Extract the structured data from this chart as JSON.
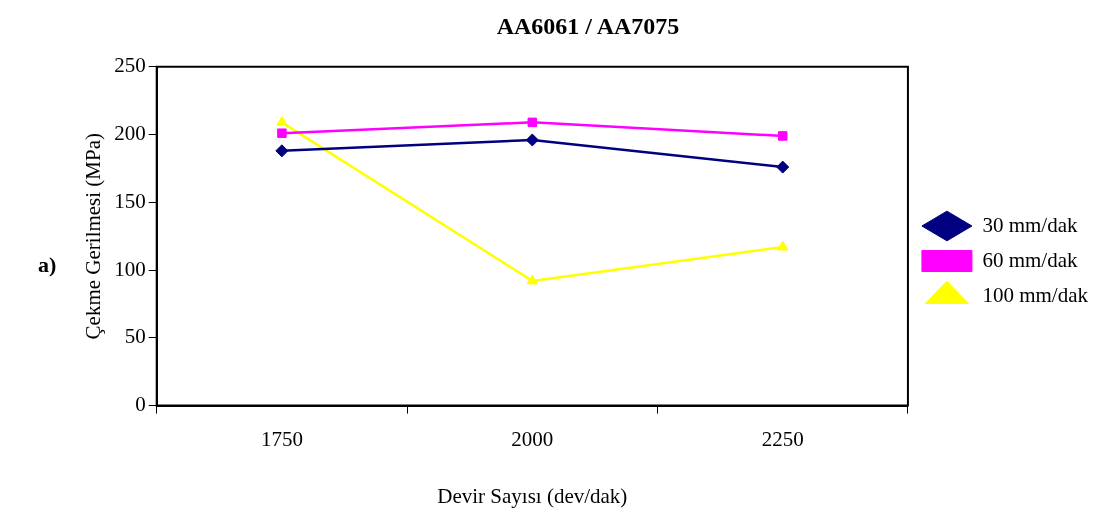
{
  "chart_data": {
    "type": "line",
    "title": "AA6061 / AA7075",
    "xlabel": "Devir Sayısı (dev/dak)",
    "ylabel": "Çekme Gerilmesi (MPa)",
    "annotations": [
      "a)"
    ],
    "categories": [
      "1750",
      "2000",
      "2250"
    ],
    "series": [
      {
        "name": "30 mm/dak",
        "color": "#000080",
        "marker": "diamond",
        "values": [
          188,
          196,
          176
        ]
      },
      {
        "name": "60 mm/dak",
        "color": "#ff00ff",
        "marker": "square",
        "values": [
          201,
          209,
          199
        ]
      },
      {
        "name": "100 mm/dak",
        "color": "#ffff00",
        "marker": "triangle",
        "values": [
          209,
          92,
          117
        ]
      }
    ],
    "ylim": [
      0,
      250
    ],
    "yticks": [
      0,
      50,
      100,
      150,
      200,
      250
    ],
    "grid": false,
    "legend": "right"
  }
}
